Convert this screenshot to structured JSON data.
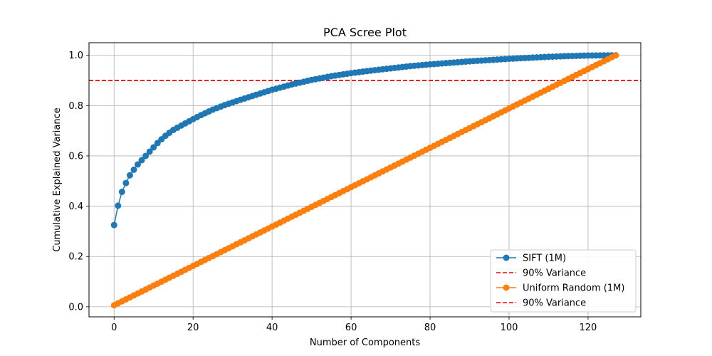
{
  "chart_data": {
    "type": "line",
    "title": "PCA Scree Plot",
    "xlabel": "Number of Components",
    "ylabel": "Cumulative Explained Variance",
    "xlim": [
      -6.35,
      133.35
    ],
    "ylim": [
      -0.04,
      1.05
    ],
    "xticks": [
      0,
      20,
      40,
      60,
      80,
      100,
      120
    ],
    "yticks": [
      0.0,
      0.2,
      0.4,
      0.6,
      0.8,
      1.0
    ],
    "xtick_labels": [
      "0",
      "20",
      "40",
      "60",
      "80",
      "100",
      "120"
    ],
    "ytick_labels": [
      "0.0",
      "0.2",
      "0.4",
      "0.6",
      "0.8",
      "1.0"
    ],
    "grid": true,
    "legend_position": "bottom-right",
    "num_components": 128,
    "series": [
      {
        "name": "SIFT (1M)",
        "color": "#1f77b4",
        "marker": "circle",
        "anchors": [
          [
            0,
            0.325
          ],
          [
            1,
            0.402
          ],
          [
            2,
            0.457
          ],
          [
            3,
            0.492
          ],
          [
            4,
            0.523
          ],
          [
            5,
            0.545
          ],
          [
            6,
            0.566
          ],
          [
            7,
            0.583
          ],
          [
            8,
            0.6
          ],
          [
            9,
            0.617
          ],
          [
            10,
            0.634
          ],
          [
            11,
            0.651
          ],
          [
            12,
            0.666
          ],
          [
            13,
            0.68
          ],
          [
            14,
            0.692
          ],
          [
            15,
            0.703
          ],
          [
            16,
            0.712
          ],
          [
            18,
            0.729
          ],
          [
            20,
            0.746
          ],
          [
            22,
            0.762
          ],
          [
            25,
            0.784
          ],
          [
            28,
            0.802
          ],
          [
            31,
            0.818
          ],
          [
            35,
            0.838
          ],
          [
            40,
            0.863
          ],
          [
            45,
            0.884
          ],
          [
            50,
            0.902
          ],
          [
            55,
            0.917
          ],
          [
            60,
            0.929
          ],
          [
            65,
            0.939
          ],
          [
            70,
            0.948
          ],
          [
            75,
            0.957
          ],
          [
            80,
            0.964
          ],
          [
            85,
            0.97
          ],
          [
            90,
            0.976
          ],
          [
            95,
            0.981
          ],
          [
            100,
            0.986
          ],
          [
            105,
            0.99
          ],
          [
            110,
            0.994
          ],
          [
            115,
            0.997
          ],
          [
            120,
            0.999
          ],
          [
            127,
            1.0
          ]
        ]
      },
      {
        "name": "90% Variance",
        "color": "#ff0000",
        "style": "dashed",
        "hline": 0.9
      },
      {
        "name": "Uniform Random (1M)",
        "color": "#ff7f0e",
        "marker": "circle",
        "anchors": [
          [
            0,
            0.006
          ],
          [
            127,
            1.0
          ]
        ]
      },
      {
        "name": "90% Variance",
        "color": "#ff0000",
        "style": "dashed",
        "hline": 0.9
      }
    ]
  }
}
